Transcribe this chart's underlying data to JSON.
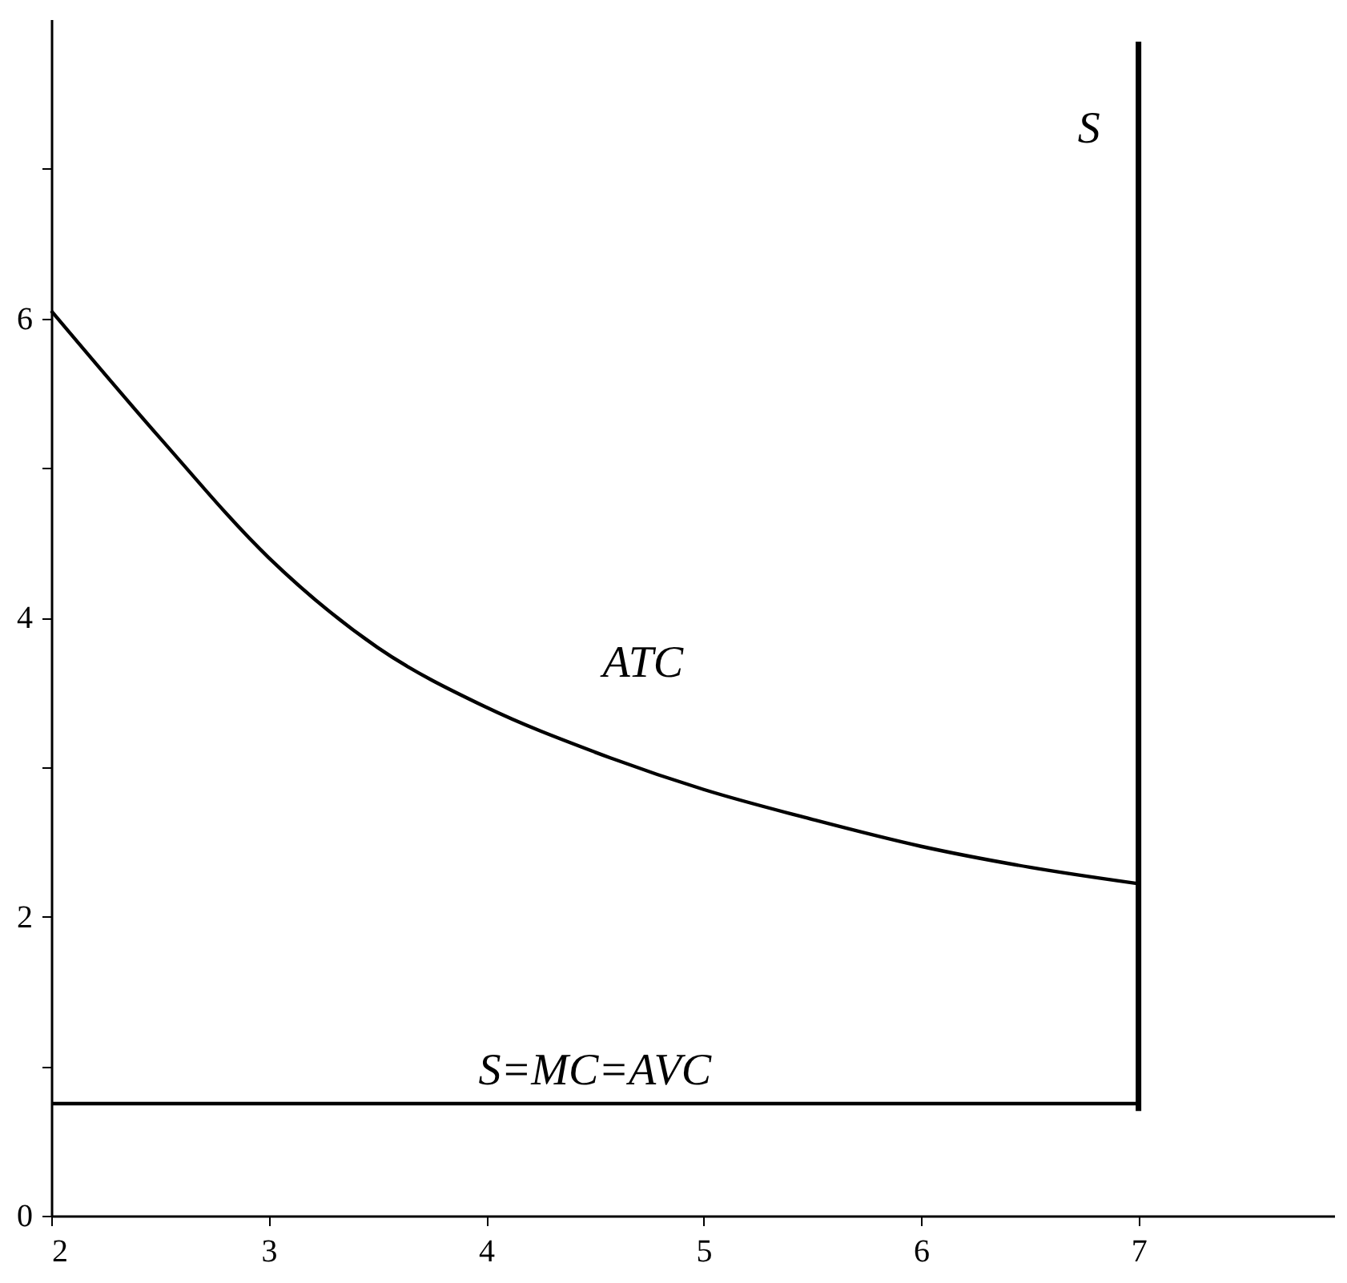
{
  "chart_data": {
    "type": "line",
    "xlim": [
      2,
      7.9
    ],
    "ylim": [
      0,
      8
    ],
    "xticks": [
      2,
      3,
      4,
      5,
      6,
      7
    ],
    "yticks": [
      0,
      {
        "value": 1,
        "label": null
      },
      2,
      {
        "value": 3,
        "label": null
      },
      4,
      {
        "value": 5,
        "label": null
      },
      6,
      {
        "value": 7,
        "label": null
      }
    ],
    "grid": false,
    "marker": "none",
    "line_style": "solid",
    "series": [
      {
        "name": "ATC",
        "color": "#000000",
        "x": [
          2,
          2.5,
          3,
          3.5,
          4,
          4.5,
          5,
          5.5,
          6,
          6.5,
          7
        ],
        "values": [
          6.05,
          5.2,
          4.4,
          3.8,
          3.4,
          3.1,
          2.85,
          2.65,
          2.47,
          2.33,
          2.22
        ]
      },
      {
        "name": "S=MC=AVC",
        "color": "#000000",
        "x": [
          2,
          7
        ],
        "values": [
          0.75,
          0.75
        ]
      },
      {
        "name": "S",
        "color": "#000000",
        "x": [
          7,
          7
        ],
        "values": [
          0.7,
          7.85
        ]
      }
    ]
  }
}
